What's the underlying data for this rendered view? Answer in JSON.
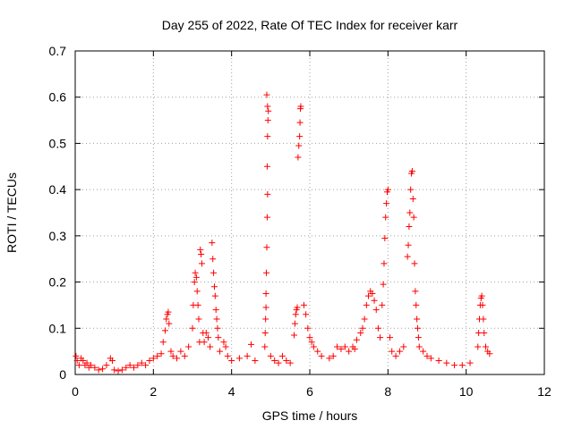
{
  "chart_data": {
    "type": "scatter",
    "title": "Day 255 of 2022, Rate Of TEC Index for receiver karr",
    "xlabel": "GPS time / hours",
    "ylabel": "ROTI / TECUs",
    "xlim": [
      0,
      12
    ],
    "ylim": [
      0,
      0.7
    ],
    "x_ticks": [
      {
        "value": 0,
        "label": "0"
      },
      {
        "value": 2,
        "label": "2"
      },
      {
        "value": 4,
        "label": "4"
      },
      {
        "value": 6,
        "label": "6"
      },
      {
        "value": 8,
        "label": "8"
      },
      {
        "value": 10,
        "label": "10"
      },
      {
        "value": 12,
        "label": "12"
      }
    ],
    "y_ticks": [
      {
        "value": 0,
        "label": "0"
      },
      {
        "value": 0.1,
        "label": "0.1"
      },
      {
        "value": 0.2,
        "label": "0.2"
      },
      {
        "value": 0.3,
        "label": "0.3"
      },
      {
        "value": 0.4,
        "label": "0.4"
      },
      {
        "value": 0.5,
        "label": "0.5"
      },
      {
        "value": 0.6,
        "label": "0.6"
      },
      {
        "value": 0.7,
        "label": "0.7"
      }
    ],
    "grid": true,
    "marker": "+",
    "color": "#ff0000",
    "series": [
      {
        "name": "ROTI",
        "points": [
          [
            0.02,
            0.04
          ],
          [
            0.05,
            0.03
          ],
          [
            0.1,
            0.02
          ],
          [
            0.15,
            0.035
          ],
          [
            0.2,
            0.03
          ],
          [
            0.25,
            0.02
          ],
          [
            0.3,
            0.025
          ],
          [
            0.35,
            0.015
          ],
          [
            0.4,
            0.02
          ],
          [
            0.5,
            0.015
          ],
          [
            0.6,
            0.01
          ],
          [
            0.7,
            0.012
          ],
          [
            0.8,
            0.02
          ],
          [
            0.9,
            0.035
          ],
          [
            0.95,
            0.03
          ],
          [
            1.0,
            0.01
          ],
          [
            1.1,
            0.008
          ],
          [
            1.2,
            0.01
          ],
          [
            1.3,
            0.015
          ],
          [
            1.4,
            0.02
          ],
          [
            1.5,
            0.015
          ],
          [
            1.6,
            0.02
          ],
          [
            1.7,
            0.025
          ],
          [
            1.8,
            0.02
          ],
          [
            1.9,
            0.03
          ],
          [
            2.0,
            0.035
          ],
          [
            2.1,
            0.04
          ],
          [
            2.2,
            0.045
          ],
          [
            2.25,
            0.07
          ],
          [
            2.3,
            0.095
          ],
          [
            2.33,
            0.12
          ],
          [
            2.36,
            0.13
          ],
          [
            2.38,
            0.135
          ],
          [
            2.4,
            0.11
          ],
          [
            2.45,
            0.05
          ],
          [
            2.5,
            0.04
          ],
          [
            2.6,
            0.035
          ],
          [
            2.7,
            0.05
          ],
          [
            2.8,
            0.04
          ],
          [
            2.9,
            0.06
          ],
          [
            3.0,
            0.1
          ],
          [
            3.02,
            0.15
          ],
          [
            3.05,
            0.2
          ],
          [
            3.07,
            0.22
          ],
          [
            3.1,
            0.21
          ],
          [
            3.12,
            0.18
          ],
          [
            3.14,
            0.15
          ],
          [
            3.16,
            0.12
          ],
          [
            3.18,
            0.07
          ],
          [
            3.2,
            0.27
          ],
          [
            3.22,
            0.26
          ],
          [
            3.24,
            0.24
          ],
          [
            3.27,
            0.09
          ],
          [
            3.3,
            0.07
          ],
          [
            3.35,
            0.09
          ],
          [
            3.4,
            0.08
          ],
          [
            3.45,
            0.06
          ],
          [
            3.5,
            0.285
          ],
          [
            3.52,
            0.25
          ],
          [
            3.54,
            0.22
          ],
          [
            3.56,
            0.19
          ],
          [
            3.58,
            0.17
          ],
          [
            3.6,
            0.14
          ],
          [
            3.62,
            0.12
          ],
          [
            3.64,
            0.1
          ],
          [
            3.66,
            0.08
          ],
          [
            3.7,
            0.05
          ],
          [
            3.8,
            0.07
          ],
          [
            3.85,
            0.06
          ],
          [
            3.9,
            0.04
          ],
          [
            4.0,
            0.03
          ],
          [
            4.2,
            0.035
          ],
          [
            4.4,
            0.04
          ],
          [
            4.5,
            0.065
          ],
          [
            4.6,
            0.03
          ],
          [
            4.9,
            0.605
          ],
          [
            4.92,
            0.58
          ],
          [
            4.94,
            0.57
          ],
          [
            4.93,
            0.55
          ],
          [
            4.92,
            0.515
          ],
          [
            4.91,
            0.45
          ],
          [
            4.92,
            0.39
          ],
          [
            4.91,
            0.34
          ],
          [
            4.9,
            0.275
          ],
          [
            4.89,
            0.22
          ],
          [
            4.88,
            0.175
          ],
          [
            4.88,
            0.145
          ],
          [
            4.87,
            0.12
          ],
          [
            4.86,
            0.09
          ],
          [
            4.85,
            0.06
          ],
          [
            5.0,
            0.04
          ],
          [
            5.1,
            0.03
          ],
          [
            5.2,
            0.025
          ],
          [
            5.3,
            0.04
          ],
          [
            5.4,
            0.03
          ],
          [
            5.5,
            0.025
          ],
          [
            5.6,
            0.085
          ],
          [
            5.62,
            0.11
          ],
          [
            5.64,
            0.13
          ],
          [
            5.66,
            0.14
          ],
          [
            5.68,
            0.145
          ],
          [
            5.7,
            0.47
          ],
          [
            5.72,
            0.495
          ],
          [
            5.74,
            0.515
          ],
          [
            5.75,
            0.545
          ],
          [
            5.76,
            0.575
          ],
          [
            5.77,
            0.58
          ],
          [
            5.85,
            0.15
          ],
          [
            5.9,
            0.13
          ],
          [
            5.95,
            0.1
          ],
          [
            6.0,
            0.08
          ],
          [
            6.05,
            0.07
          ],
          [
            6.1,
            0.06
          ],
          [
            6.2,
            0.05
          ],
          [
            6.3,
            0.04
          ],
          [
            6.5,
            0.035
          ],
          [
            6.6,
            0.04
          ],
          [
            6.7,
            0.06
          ],
          [
            6.8,
            0.055
          ],
          [
            6.9,
            0.06
          ],
          [
            7.0,
            0.05
          ],
          [
            7.1,
            0.06
          ],
          [
            7.15,
            0.055
          ],
          [
            7.2,
            0.075
          ],
          [
            7.3,
            0.09
          ],
          [
            7.35,
            0.1
          ],
          [
            7.4,
            0.12
          ],
          [
            7.45,
            0.15
          ],
          [
            7.5,
            0.17
          ],
          [
            7.55,
            0.18
          ],
          [
            7.6,
            0.175
          ],
          [
            7.65,
            0.16
          ],
          [
            7.7,
            0.14
          ],
          [
            7.75,
            0.1
          ],
          [
            7.8,
            0.08
          ],
          [
            7.85,
            0.15
          ],
          [
            7.88,
            0.195
          ],
          [
            7.9,
            0.24
          ],
          [
            7.92,
            0.295
          ],
          [
            7.94,
            0.34
          ],
          [
            7.96,
            0.37
          ],
          [
            7.98,
            0.395
          ],
          [
            8.0,
            0.4
          ],
          [
            8.05,
            0.08
          ],
          [
            8.1,
            0.05
          ],
          [
            8.2,
            0.04
          ],
          [
            8.3,
            0.05
          ],
          [
            8.4,
            0.06
          ],
          [
            8.5,
            0.255
          ],
          [
            8.52,
            0.28
          ],
          [
            8.54,
            0.32
          ],
          [
            8.56,
            0.35
          ],
          [
            8.58,
            0.4
          ],
          [
            8.6,
            0.435
          ],
          [
            8.62,
            0.44
          ],
          [
            8.64,
            0.38
          ],
          [
            8.66,
            0.34
          ],
          [
            8.68,
            0.24
          ],
          [
            8.7,
            0.18
          ],
          [
            8.72,
            0.15
          ],
          [
            8.74,
            0.12
          ],
          [
            8.76,
            0.1
          ],
          [
            8.78,
            0.08
          ],
          [
            8.8,
            0.06
          ],
          [
            8.9,
            0.05
          ],
          [
            9.0,
            0.04
          ],
          [
            9.1,
            0.035
          ],
          [
            9.3,
            0.03
          ],
          [
            9.5,
            0.025
          ],
          [
            9.7,
            0.02
          ],
          [
            9.9,
            0.02
          ],
          [
            10.1,
            0.025
          ],
          [
            10.3,
            0.06
          ],
          [
            10.32,
            0.09
          ],
          [
            10.34,
            0.12
          ],
          [
            10.36,
            0.15
          ],
          [
            10.38,
            0.165
          ],
          [
            10.4,
            0.17
          ],
          [
            10.42,
            0.15
          ],
          [
            10.44,
            0.12
          ],
          [
            10.46,
            0.09
          ],
          [
            10.5,
            0.06
          ],
          [
            10.55,
            0.05
          ],
          [
            10.6,
            0.045
          ]
        ]
      }
    ]
  }
}
